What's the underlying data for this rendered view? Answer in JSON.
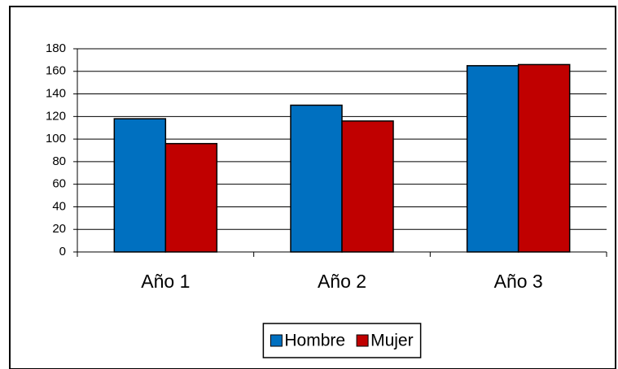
{
  "chart_data": {
    "type": "bar",
    "categories": [
      "Año 1",
      "Año 2",
      "Año 3"
    ],
    "series": [
      {
        "name": "Hombre",
        "color": "#0070c0",
        "values": [
          118,
          130,
          165
        ]
      },
      {
        "name": "Mujer",
        "color": "#c00000",
        "values": [
          96,
          116,
          166
        ]
      }
    ],
    "ylim": [
      0,
      180
    ],
    "yticks": [
      0,
      20,
      40,
      60,
      80,
      100,
      120,
      140,
      160,
      180
    ],
    "grid": true,
    "legend": "bottom"
  }
}
